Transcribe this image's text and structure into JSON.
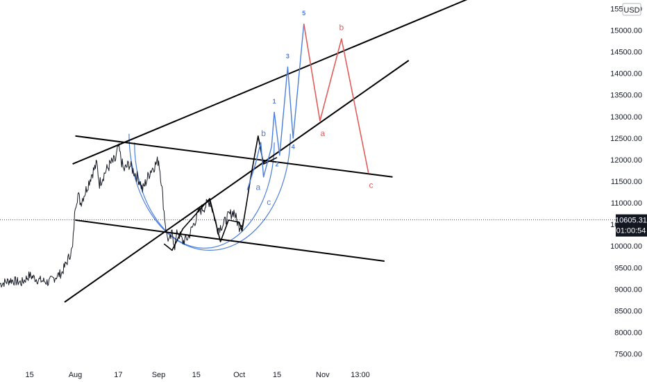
{
  "chart_data": {
    "type": "line",
    "title": "",
    "currency": "USD",
    "y_axis": {
      "ticks": [
        15500,
        15000,
        14500,
        14000,
        13500,
        13000,
        12500,
        12000,
        11500,
        11000,
        10500,
        10000,
        9500,
        9000,
        8500,
        8000,
        7500
      ],
      "tick_labels": [
        "15500.00",
        "15000.00",
        "14500.00",
        "14000.00",
        "13500.00",
        "13000.00",
        "12500.00",
        "12000.00",
        "11500.00",
        "11000.00",
        "10500.00",
        "10000.00",
        "9500.00",
        "9000.00",
        "8500.00",
        "8000.00",
        "7500.00"
      ],
      "range": [
        7300,
        15700
      ]
    },
    "x_axis": {
      "tick_labels": [
        "15",
        "Aug",
        "17",
        "Sep",
        "15",
        "Oct",
        "15",
        "Nov",
        "13:00"
      ],
      "tick_days": [
        -17,
        0,
        16,
        31,
        45,
        61,
        75,
        92,
        106
      ],
      "range": [
        -28,
        201
      ]
    },
    "last_price": {
      "value": 10605.31,
      "label": "10605.31",
      "countdown": "01:00:54"
    },
    "price_series": {
      "name": "",
      "anchors": [
        [
          -28,
          9120
        ],
        [
          -24,
          9210
        ],
        [
          -20,
          9150
        ],
        [
          -17,
          9320
        ],
        [
          -14,
          9220
        ],
        [
          -10,
          9160
        ],
        [
          -7,
          9300
        ],
        [
          -5,
          9380
        ],
        [
          -3,
          9650
        ],
        [
          -1,
          9950
        ],
        [
          0,
          10950
        ],
        [
          1,
          11200
        ],
        [
          2,
          11000
        ],
        [
          4,
          11300
        ],
        [
          6,
          11650
        ],
        [
          8,
          11900
        ],
        [
          9,
          11450
        ],
        [
          11,
          11700
        ],
        [
          13,
          11900
        ],
        [
          15,
          12000
        ],
        [
          16,
          12300
        ],
        [
          17,
          12020
        ],
        [
          18,
          11750
        ],
        [
          20,
          11900
        ],
        [
          22,
          11700
        ],
        [
          24,
          11500
        ],
        [
          25,
          11300
        ],
        [
          26,
          11450
        ],
        [
          28,
          11750
        ],
        [
          30,
          11900
        ],
        [
          31,
          12000
        ],
        [
          32,
          11500
        ],
        [
          33,
          10800
        ],
        [
          34,
          10250
        ],
        [
          35,
          10100
        ],
        [
          36,
          10300
        ],
        [
          37,
          10000
        ],
        [
          38,
          10350
        ],
        [
          40,
          10100
        ],
        [
          42,
          10200
        ],
        [
          44,
          10500
        ],
        [
          46,
          10800
        ],
        [
          48,
          10900
        ],
        [
          50,
          11050
        ],
        [
          51,
          10850
        ],
        [
          52,
          10600
        ],
        [
          53,
          10400
        ],
        [
          55,
          10500
        ],
        [
          57,
          10700
        ],
        [
          59,
          10800
        ],
        [
          60,
          10600
        ],
        [
          61,
          10450
        ],
        [
          62,
          10550
        ],
        [
          63,
          10640
        ]
      ]
    },
    "trendlines": [
      {
        "name": "upper-rising",
        "from": [
          -1,
          11900
        ],
        "to": [
          149,
          15800
        ]
      },
      {
        "name": "middle-rising",
        "from": [
          -4,
          8700
        ],
        "to": [
          124,
          14300
        ]
      },
      {
        "name": "upper-falling",
        "from": [
          0,
          12550
        ],
        "to": [
          118,
          11600
        ]
      },
      {
        "name": "lower-falling",
        "from": [
          0,
          10600
        ],
        "to": [
          115,
          9650
        ]
      }
    ],
    "black_wave": [
      [
        33,
        10050
      ],
      [
        36,
        9900
      ],
      [
        40,
        10400
      ],
      [
        50,
        11100
      ],
      [
        54,
        10100
      ],
      [
        57,
        10600
      ],
      [
        61,
        10550
      ],
      [
        62,
        10350
      ],
      [
        64,
        11100
      ],
      [
        65,
        11500
      ],
      [
        68,
        12550
      ],
      [
        70,
        11900
      ],
      [
        75,
        12050
      ]
    ],
    "blue_wave": [
      [
        64,
        11300
      ],
      [
        67,
        11900
      ],
      [
        69,
        12400
      ],
      [
        70,
        11600
      ],
      [
        73,
        12300
      ],
      [
        74,
        13100
      ],
      [
        76,
        12100
      ],
      [
        79,
        14150
      ],
      [
        81,
        12500
      ],
      [
        85,
        15150
      ]
    ],
    "red_wave": [
      [
        85,
        15150
      ],
      [
        91,
        12900
      ],
      [
        99,
        14800
      ],
      [
        109,
        11700
      ]
    ],
    "arcs": [
      {
        "name": "arc-inner",
        "center": [
          48,
          12400
        ],
        "rx_days": 26,
        "ry_price": 2450
      },
      {
        "name": "arc-outer",
        "center": [
          50,
          12600
        ],
        "rx_days": 30,
        "ry_price": 2700
      }
    ],
    "wave_labels": [
      {
        "text": "5",
        "x": 85,
        "y": 15350,
        "color": "blue",
        "size": "small"
      },
      {
        "text": "3",
        "x": 79,
        "y": 14350,
        "color": "blue",
        "size": "small"
      },
      {
        "text": "1",
        "x": 74,
        "y": 13300,
        "color": "blue",
        "size": "small"
      },
      {
        "text": "4",
        "x": 81,
        "y": 12250,
        "color": "blue",
        "size": "small"
      },
      {
        "text": "2",
        "x": 75,
        "y": 11850,
        "color": "blue",
        "size": "small"
      },
      {
        "text": "b",
        "x": 70,
        "y": 12550,
        "color": "blue",
        "size": "normal"
      },
      {
        "text": "a",
        "x": 68,
        "y": 11300,
        "color": "blue",
        "size": "normal"
      },
      {
        "text": "c",
        "x": 72,
        "y": 10950,
        "color": "blue",
        "size": "normal"
      },
      {
        "text": "b",
        "x": 99,
        "y": 15000,
        "color": "red",
        "size": "normal"
      },
      {
        "text": "a",
        "x": 92,
        "y": 12550,
        "color": "red",
        "size": "normal"
      },
      {
        "text": "c",
        "x": 110,
        "y": 11350,
        "color": "red",
        "size": "normal"
      }
    ],
    "grid": false,
    "legend": "none"
  },
  "colors": {
    "blue": "#4a7de0",
    "red": "#e35b5b",
    "line": "#000000",
    "candle": "#131722",
    "axis_text": "#131722",
    "badge_bg": "#131722",
    "badge_fg": "#ffffff"
  }
}
